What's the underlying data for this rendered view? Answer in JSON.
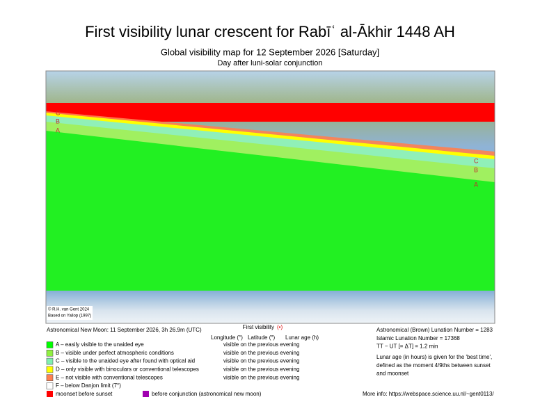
{
  "header": {
    "title": "First visibility lunar crescent for Rabīʿ al-Ākhir 1448 AH",
    "subtitle": "Global visibility map for 12 September 2026 [Saturday]",
    "note": "Day after luni-solar conjunction"
  },
  "map": {
    "zone_labels_left": [
      "C",
      "B",
      "A"
    ],
    "zone_labels_right": [
      "C",
      "B",
      "A"
    ],
    "credit": [
      "© R.H. van Gent 2024",
      "Based on Yallop (1997)"
    ]
  },
  "info": {
    "new_moon": "Astronomical New Moon: 11 September 2026, 3h 26.9m (UTC)",
    "first_visibility": "First visibility",
    "symbol": "(•)",
    "columns": [
      "Longitude (°)",
      "Latitude (°)",
      "Lunar age (h)"
    ]
  },
  "legend": [
    {
      "label": "A – easily visible to the unaided eye",
      "color": "#00ff00",
      "note": "visible on the previous evening"
    },
    {
      "label": "B – visible under perfect atmospheric conditions",
      "color": "#90f040",
      "note": "visible on the previous evening"
    },
    {
      "label": "C – visible to the unaided eye after found with optical aid",
      "color": "#80f0b0",
      "note": "visible on the previous evening"
    },
    {
      "label": "D – only visible with binoculars or conventional telescopes",
      "color": "#ffff00",
      "note": "visible on the previous evening"
    },
    {
      "label": "E – not visible with conventional telescopes",
      "color": "#ff7f50",
      "note": "visible on the previous evening"
    },
    {
      "label": "F – below Danjon limit (7°)",
      "color": "#ffffff"
    }
  ],
  "extra_legend": [
    {
      "label": "moonset before sunset",
      "color": "#ff0000"
    },
    {
      "label": "before conjunction (astronomical new moon)",
      "color": "#a000b0"
    }
  ],
  "right": {
    "lines": [
      "Astronomical (Brown) Lunation Number = 1283",
      "Islamic Lunation Number = 17368",
      "TT − UT [= ΔT] = 1.2 min"
    ],
    "age_note": [
      "Lunar age (in hours) is given for the 'best time',",
      "defined as the moment 4/9ths between sunset",
      "and moonset"
    ],
    "more_info": "More info: https://webspace.science.uu.nl/~gent0113/"
  }
}
